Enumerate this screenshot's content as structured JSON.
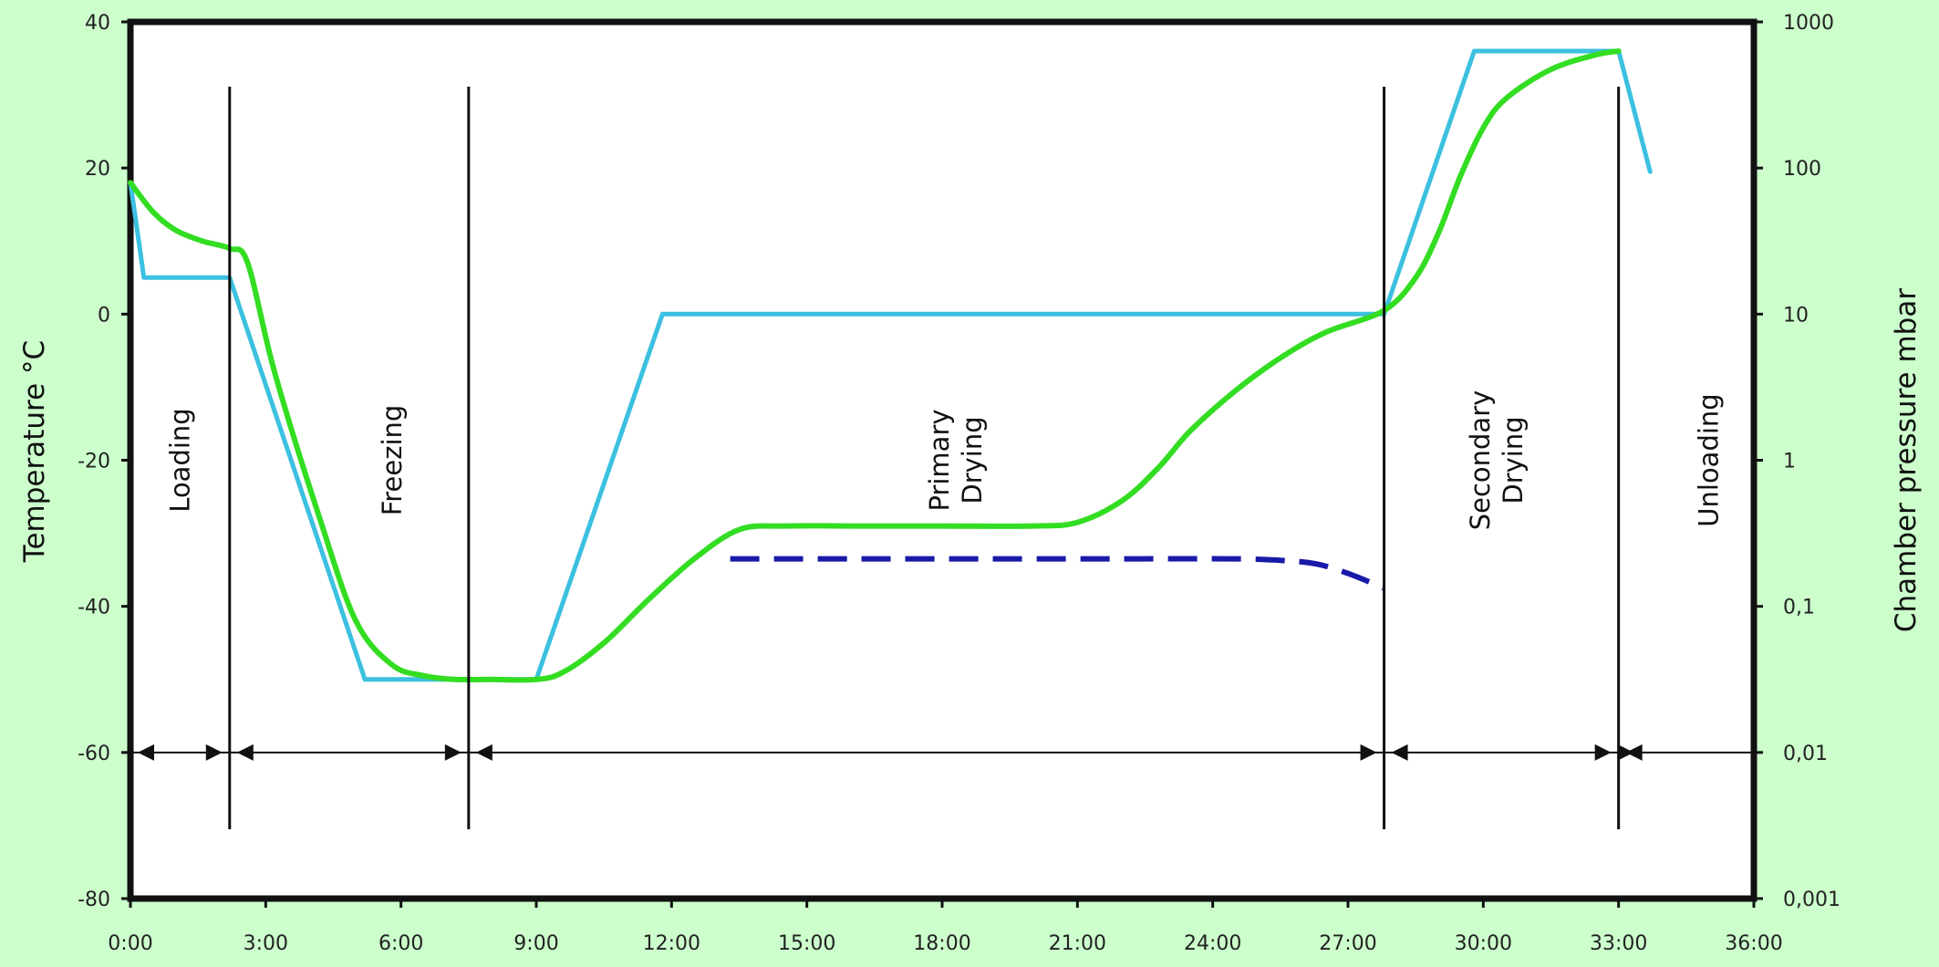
{
  "chart_data": {
    "type": "line",
    "title": "",
    "xlabel": "",
    "ylabel": "Temperature °C",
    "y2label": "Chamber pressure mbar",
    "xlim": [
      0,
      36
    ],
    "ylim": [
      -80,
      40
    ],
    "y2scale": "log",
    "y2lim": [
      0.001,
      1000
    ],
    "grid": false,
    "legend": "none",
    "x_ticks": [
      {
        "value": 0,
        "label": "0:00"
      },
      {
        "value": 3,
        "label": "3:00"
      },
      {
        "value": 6,
        "label": "6:00"
      },
      {
        "value": 9,
        "label": "9:00"
      },
      {
        "value": 12,
        "label": "12:00"
      },
      {
        "value": 15,
        "label": "15:00"
      },
      {
        "value": 18,
        "label": "18:00"
      },
      {
        "value": 21,
        "label": "21:00"
      },
      {
        "value": 24,
        "label": "24:00"
      },
      {
        "value": 27,
        "label": "27:00"
      },
      {
        "value": 30,
        "label": "30:00"
      },
      {
        "value": 33,
        "label": "33:00"
      },
      {
        "value": 36,
        "label": "36:00"
      }
    ],
    "y_ticks": [
      {
        "value": 40,
        "label": "40"
      },
      {
        "value": 20,
        "label": "20"
      },
      {
        "value": 0,
        "label": "0"
      },
      {
        "value": -20,
        "label": "-20"
      },
      {
        "value": -40,
        "label": "-40"
      },
      {
        "value": -60,
        "label": "-60"
      },
      {
        "value": -80,
        "label": "-80"
      }
    ],
    "y2_ticks": [
      {
        "value": 1000,
        "label": "1000"
      },
      {
        "value": 100,
        "label": "100"
      },
      {
        "value": 10,
        "label": "10"
      },
      {
        "value": 1,
        "label": "1"
      },
      {
        "value": 0.1,
        "label": "0,1"
      },
      {
        "value": 0.01,
        "label": "0,01"
      },
      {
        "value": 0.001,
        "label": "0,001"
      }
    ],
    "colors": {
      "shelf": "#3cc0e0",
      "product": "#33dd22",
      "pressure": "#1a1aa8",
      "axes": "#111111",
      "plot_bg": "#ffffff",
      "page_bg": "#ccffcc"
    },
    "series": [
      {
        "id": "shelf",
        "axis": "left",
        "style": "solid",
        "x": [
          0,
          0.3,
          2.2,
          5.2,
          9.0,
          11.8,
          27.8,
          29.8,
          33.0,
          33.7
        ],
        "y": [
          18,
          5,
          5,
          -50,
          -50,
          0,
          0,
          36,
          36,
          19.5
        ]
      },
      {
        "id": "product",
        "axis": "left",
        "style": "solid",
        "x": [
          0,
          0.5,
          1.0,
          1.6,
          2.2,
          2.6,
          3.2,
          4.2,
          5.0,
          5.8,
          6.5,
          7.2,
          8.0,
          9.0,
          9.6,
          10.5,
          11.5,
          12.5,
          13.5,
          14.5,
          16.0,
          18.0,
          20.0,
          21.0,
          22.0,
          22.8,
          23.5,
          24.5,
          25.5,
          26.5,
          27.8,
          28.5,
          29.0,
          29.5,
          30.0,
          30.5,
          31.5,
          32.5,
          33.0
        ],
        "y": [
          18,
          14,
          11.5,
          10,
          9,
          7,
          -8,
          -28,
          -42,
          -48,
          -49.5,
          -50,
          -50,
          -50,
          -49,
          -45,
          -39,
          -33.5,
          -29.5,
          -29,
          -29,
          -29,
          -29,
          -28.5,
          -25.5,
          -21,
          -16,
          -10.5,
          -6,
          -2.5,
          0.5,
          5,
          11,
          19,
          25.5,
          29.5,
          33.5,
          35.5,
          36
        ]
      },
      {
        "id": "pressure",
        "axis": "right",
        "style": "dashed",
        "x": [
          13.3,
          16,
          19,
          22,
          24.5,
          25.5,
          26.3,
          27.0,
          27.8
        ],
        "y": [
          -33.5,
          -33.5,
          -33.5,
          -33.5,
          -33.5,
          -33.7,
          -34.2,
          -35.5,
          -37.5
        ]
      }
    ],
    "phase_dividers": [
      2.2,
      7.5,
      27.8,
      33.0
    ],
    "arrow_row_y": -60,
    "phases": [
      {
        "label_lines": [
          "Loading"
        ],
        "x": 1.1,
        "y": -20
      },
      {
        "label_lines": [
          "Freezing"
        ],
        "x": 5.8,
        "y": -20
      },
      {
        "label_lines": [
          "Primary",
          "Drying"
        ],
        "x": 18.3,
        "y": -20
      },
      {
        "label_lines": [
          "Secondary",
          "Drying"
        ],
        "x": 30.3,
        "y": -20
      },
      {
        "label_lines": [
          "Unloading"
        ],
        "x": 35.0,
        "y": -20
      }
    ]
  }
}
